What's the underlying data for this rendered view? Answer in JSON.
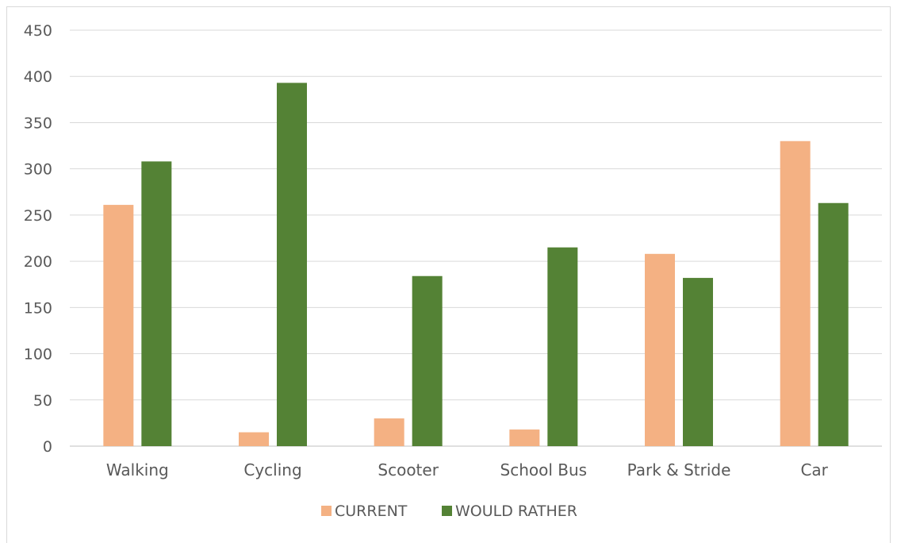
{
  "chart_data": {
    "type": "bar",
    "categories": [
      "Walking",
      "Cycling",
      "Scooter",
      "School Bus",
      "Park & Stride",
      "Car"
    ],
    "series": [
      {
        "name": "CURRENT",
        "color": "#f4b183",
        "values": [
          261,
          15,
          30,
          18,
          208,
          330
        ]
      },
      {
        "name": "WOULD RATHER",
        "color": "#548235",
        "values": [
          308,
          393,
          184,
          215,
          182,
          263
        ]
      }
    ],
    "yticks": [
      "0",
      "50",
      "100",
      "150",
      "200",
      "250",
      "300",
      "350",
      "400",
      "450"
    ],
    "ylim": [
      0,
      450
    ],
    "grid": true,
    "legend": "bottom"
  }
}
